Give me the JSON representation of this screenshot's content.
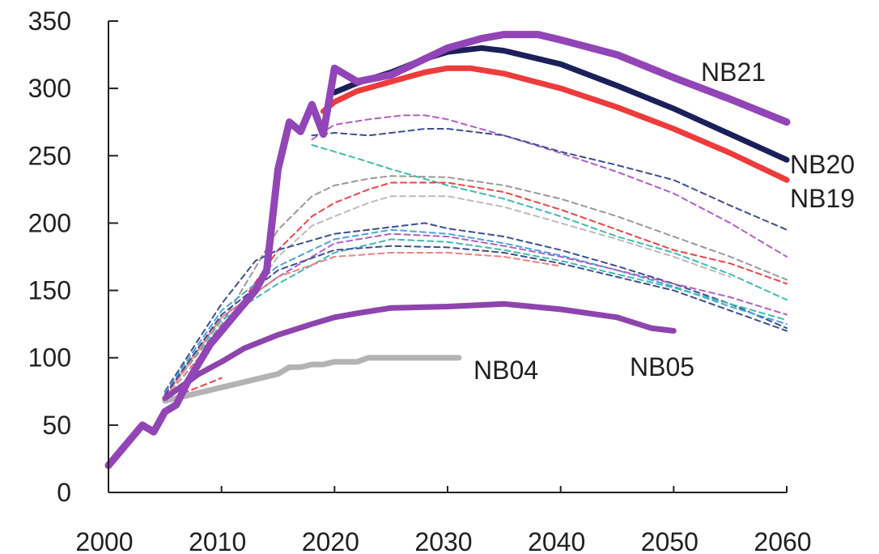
{
  "chart_data": {
    "type": "line",
    "title": "",
    "xlabel": "",
    "ylabel": "",
    "xlim": [
      2000,
      2060
    ],
    "ylim": [
      0,
      350
    ],
    "grid": false,
    "x_ticks": [
      "2000",
      "2010",
      "2020",
      "2030",
      "2040",
      "2050",
      "2060"
    ],
    "y_ticks": [
      "0",
      "50",
      "100",
      "150",
      "200",
      "250",
      "300",
      "350"
    ],
    "series": [
      {
        "name": "NB04",
        "color": "#b3b3b3",
        "style": "solid",
        "x": [
          2005,
          2010,
          2015,
          2016,
          2017,
          2018,
          2019,
          2020,
          2022,
          2023,
          2025,
          2031
        ],
        "y": [
          68,
          78,
          88,
          93,
          93,
          95,
          95,
          97,
          97,
          100,
          100,
          100
        ]
      },
      {
        "name": "NB05",
        "color": "#8e44ad",
        "style": "solid",
        "x": [
          2005,
          2008,
          2010,
          2012,
          2015,
          2018,
          2020,
          2022,
          2025,
          2030,
          2035,
          2040,
          2045,
          2048,
          2050
        ],
        "y": [
          70,
          88,
          97,
          107,
          117,
          125,
          130,
          133,
          137,
          138,
          140,
          136,
          130,
          122,
          120
        ]
      },
      {
        "name": "NB19",
        "color": "#ee3b3b",
        "style": "solid",
        "x": [
          2019,
          2020,
          2022,
          2025,
          2028,
          2030,
          2032,
          2035,
          2040,
          2045,
          2050,
          2055,
          2060
        ],
        "y": [
          283,
          290,
          298,
          305,
          312,
          315,
          315,
          311,
          300,
          286,
          270,
          252,
          232
        ]
      },
      {
        "name": "NB20",
        "color": "#1b1f5a",
        "style": "solid",
        "x": [
          2020,
          2022,
          2025,
          2028,
          2030,
          2033,
          2035,
          2040,
          2045,
          2050,
          2055,
          2060
        ],
        "y": [
          297,
          304,
          312,
          322,
          327,
          330,
          328,
          318,
          302,
          285,
          266,
          247
        ]
      },
      {
        "name": "NB21",
        "color": "#9145b6",
        "style": "solid",
        "x": [
          2000,
          2002,
          2003,
          2004,
          2005,
          2006,
          2007,
          2009,
          2010,
          2011,
          2012,
          2013,
          2014,
          2015,
          2016,
          2017,
          2018,
          2019,
          2020,
          2022,
          2025,
          2028,
          2030,
          2033,
          2035,
          2038,
          2040,
          2045,
          2050,
          2055,
          2060
        ],
        "y": [
          20,
          40,
          50,
          45,
          60,
          65,
          82,
          110,
          120,
          130,
          140,
          150,
          165,
          240,
          275,
          268,
          288,
          266,
          315,
          305,
          310,
          322,
          330,
          337,
          340,
          340,
          336,
          325,
          308,
          292,
          275
        ]
      },
      {
        "name": "",
        "color": "#b15fc4",
        "style": "dashed",
        "x": [
          2018,
          2020,
          2023,
          2026,
          2028,
          2030,
          2035,
          2040,
          2045,
          2050,
          2055,
          2060
        ],
        "y": [
          262,
          273,
          277,
          280,
          280,
          277,
          265,
          252,
          238,
          222,
          200,
          175
        ]
      },
      {
        "name": "",
        "color": "#3b4f8f",
        "style": "dashed",
        "x": [
          2018,
          2020,
          2023,
          2026,
          2028,
          2030,
          2035,
          2040,
          2045,
          2050,
          2055,
          2060
        ],
        "y": [
          265,
          267,
          265,
          268,
          270,
          270,
          265,
          253,
          243,
          232,
          213,
          195
        ]
      },
      {
        "name": "",
        "color": "#3fbcb0",
        "style": "dashed",
        "x": [
          2018,
          2022,
          2025,
          2030,
          2035,
          2040,
          2045,
          2050,
          2055,
          2060
        ],
        "y": [
          258,
          248,
          240,
          228,
          218,
          205,
          190,
          178,
          162,
          143
        ]
      },
      {
        "name": "",
        "color": "#999999",
        "style": "dashed",
        "x": [
          2005,
          2010,
          2015,
          2018,
          2020,
          2023,
          2025,
          2030,
          2035,
          2040,
          2045,
          2050,
          2055,
          2060
        ],
        "y": [
          72,
          125,
          195,
          220,
          228,
          233,
          235,
          234,
          228,
          218,
          205,
          190,
          175,
          158
        ]
      },
      {
        "name": "",
        "color": "#ee4444",
        "style": "dashed",
        "x": [
          2005,
          2010,
          2015,
          2018,
          2020,
          2023,
          2025,
          2030,
          2035,
          2040,
          2045,
          2050,
          2055,
          2060
        ],
        "y": [
          70,
          120,
          180,
          205,
          215,
          225,
          230,
          230,
          223,
          210,
          195,
          180,
          170,
          155
        ]
      },
      {
        "name": "",
        "color": "#bbbbbb",
        "style": "dashed",
        "x": [
          2005,
          2010,
          2015,
          2018,
          2020,
          2023,
          2025,
          2030,
          2035,
          2040,
          2045,
          2050,
          2055
        ],
        "y": [
          70,
          118,
          175,
          198,
          205,
          215,
          220,
          220,
          212,
          200,
          188,
          175,
          160
        ]
      },
      {
        "name": "",
        "color": "#3b4f8f",
        "style": "dashed",
        "x": [
          2005,
          2010,
          2013,
          2015,
          2020,
          2025,
          2028,
          2030,
          2035,
          2040,
          2045,
          2050,
          2055,
          2060
        ],
        "y": [
          75,
          140,
          172,
          180,
          192,
          197,
          200,
          196,
          190,
          180,
          168,
          155,
          140,
          122
        ]
      },
      {
        "name": "",
        "color": "#4aa3df",
        "style": "dashed",
        "x": [
          2005,
          2010,
          2015,
          2020,
          2025,
          2030,
          2035,
          2040,
          2045,
          2050,
          2055,
          2060
        ],
        "y": [
          74,
          135,
          168,
          188,
          195,
          192,
          185,
          176,
          165,
          153,
          138,
          125
        ]
      },
      {
        "name": "",
        "color": "#b15fc4",
        "style": "dashed",
        "x": [
          2005,
          2010,
          2015,
          2020,
          2025,
          2030,
          2035,
          2040,
          2045,
          2050,
          2055,
          2060
        ],
        "y": [
          73,
          130,
          160,
          185,
          192,
          190,
          183,
          175,
          165,
          155,
          145,
          132
        ]
      },
      {
        "name": "",
        "color": "#3fbcb0",
        "style": "dashed",
        "x": [
          2005,
          2010,
          2015,
          2020,
          2025,
          2030,
          2035,
          2040,
          2045,
          2050,
          2055,
          2060
        ],
        "y": [
          72,
          128,
          155,
          178,
          188,
          186,
          180,
          172,
          162,
          152,
          140,
          128
        ]
      },
      {
        "name": "",
        "color": "#3b4f8f",
        "style": "dashed",
        "x": [
          2005,
          2010,
          2015,
          2020,
          2025,
          2030,
          2035,
          2040,
          2045,
          2050,
          2055,
          2060
        ],
        "y": [
          72,
          132,
          165,
          180,
          183,
          182,
          178,
          170,
          160,
          150,
          135,
          120
        ]
      },
      {
        "name": "",
        "color": "#f08080",
        "style": "dashed",
        "x": [
          2005,
          2010,
          2015,
          2020,
          2025,
          2030,
          2035,
          2040
        ],
        "y": [
          70,
          130,
          160,
          175,
          178,
          178,
          175,
          168
        ]
      },
      {
        "name": "",
        "color": "#ee4444",
        "style": "dashed",
        "x": [
          2005,
          2007,
          2010
        ],
        "y": [
          68,
          75,
          85
        ]
      }
    ]
  }
}
